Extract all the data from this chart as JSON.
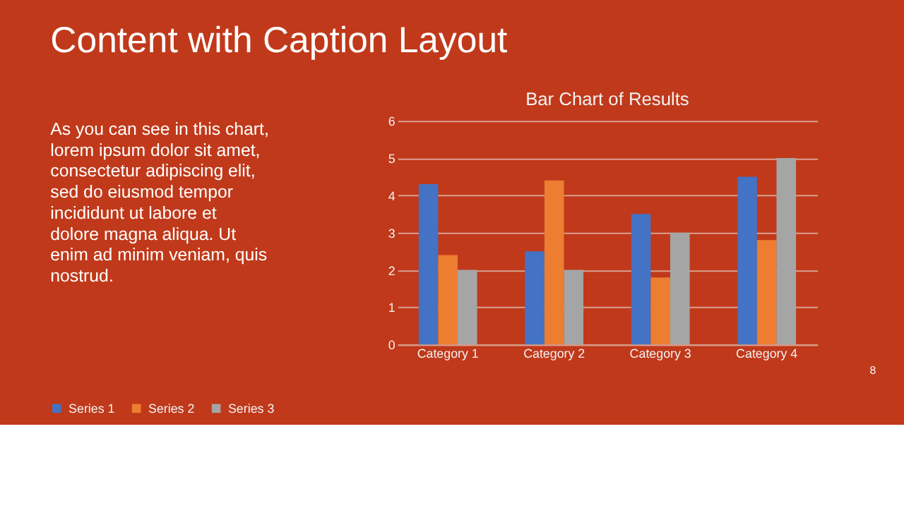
{
  "chart_data": {
    "type": "bar",
    "title": "Bar Chart of Results",
    "categories": [
      "Category 1",
      "Category 2",
      "Category 3",
      "Category 4"
    ],
    "series": [
      {
        "name": "Series 1",
        "color": "#4472c4",
        "values": [
          4.3,
          2.5,
          3.5,
          4.5
        ]
      },
      {
        "name": "Series 2",
        "color": "#ed7d31",
        "values": [
          2.4,
          4.4,
          1.8,
          2.8
        ]
      },
      {
        "name": "Series 3",
        "color": "#a5a5a5",
        "values": [
          2,
          2,
          3,
          5
        ]
      }
    ],
    "ylim": [
      0,
      6
    ],
    "yticks": [
      0,
      1,
      2,
      3,
      4,
      5,
      6
    ],
    "grid": "y",
    "legend": "bottom",
    "annotations": [
      "Content with Caption Layout",
      "As you can see in this chart,\nlorem ipsum dolor sit amet,\nconsectetur adipiscing elit,\nsed do eiusmod tempor\nincididunt ut labore et\ndolore magna aliqua. Ut\nenim ad minim veniam, quis\nnostrud.",
      "8"
    ]
  }
}
